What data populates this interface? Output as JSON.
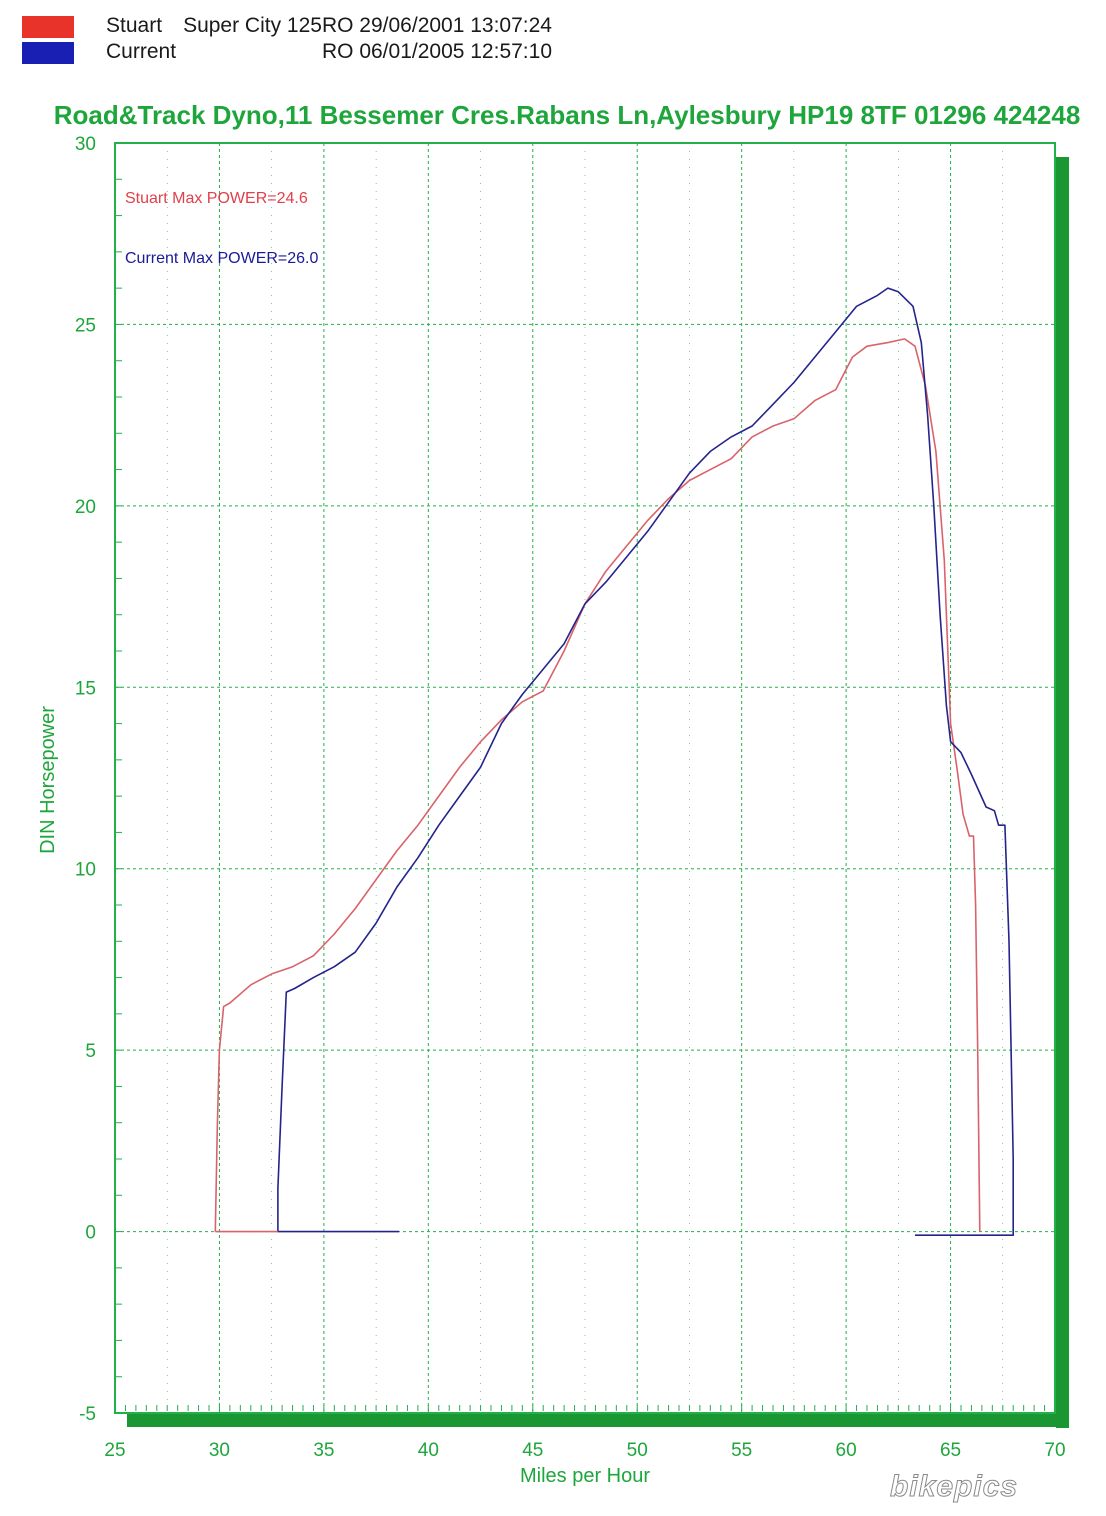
{
  "legend": {
    "entries": [
      {
        "name": "Stuart",
        "detail": "Super City 125RO  29/06/2001 13:07:24",
        "color": "#e8332b"
      },
      {
        "name": "Current",
        "detail": "RO  06/01/2005 12:57:10",
        "color": "#1a1fb4"
      }
    ]
  },
  "colors": {
    "grid": "#22b04a",
    "frame_shadow": "#1a9632",
    "text_green": "#1ea63c",
    "stuart_line": "#d9636a",
    "current_line": "#24248c",
    "stuart_annotation": "#e0404a",
    "current_annotation": "#1a1a9a"
  },
  "watermark": {
    "text": "bikepics"
  },
  "chart_data": {
    "type": "line",
    "title": "Road&Track Dyno,11 Bessemer Cres.Rabans Ln,Aylesbury HP19 8TF 01296 424248",
    "xlabel": "Miles per Hour",
    "ylabel": "DIN Horsepower",
    "xlim": [
      25,
      70
    ],
    "ylim": [
      -5,
      30
    ],
    "x_ticks": [
      25,
      30,
      35,
      40,
      45,
      50,
      55,
      60,
      65,
      70
    ],
    "y_ticks": [
      -5,
      0,
      5,
      10,
      15,
      20,
      25,
      30
    ],
    "grid": true,
    "annotations": [
      {
        "text": "Stuart  Max POWER=24.6",
        "series": "Stuart"
      },
      {
        "text": "Current  Max POWER=26.0",
        "series": "Current"
      }
    ],
    "series": [
      {
        "name": "Stuart",
        "color": "#d9636a",
        "points": [
          [
            29.8,
            0
          ],
          [
            29.9,
            3.0
          ],
          [
            30.0,
            5.0
          ],
          [
            30.2,
            6.2
          ],
          [
            30.5,
            6.3
          ],
          [
            31.5,
            6.8
          ],
          [
            32.5,
            7.1
          ],
          [
            33.5,
            7.3
          ],
          [
            34.5,
            7.6
          ],
          [
            35.5,
            8.2
          ],
          [
            36.5,
            8.9
          ],
          [
            37.5,
            9.7
          ],
          [
            38.5,
            10.5
          ],
          [
            39.5,
            11.2
          ],
          [
            40.5,
            12.0
          ],
          [
            41.5,
            12.8
          ],
          [
            42.5,
            13.5
          ],
          [
            43.5,
            14.1
          ],
          [
            44.5,
            14.6
          ],
          [
            45.5,
            14.9
          ],
          [
            46.5,
            16.0
          ],
          [
            47.5,
            17.3
          ],
          [
            48.5,
            18.2
          ],
          [
            49.5,
            18.9
          ],
          [
            50.5,
            19.6
          ],
          [
            51.5,
            20.2
          ],
          [
            52.5,
            20.7
          ],
          [
            53.5,
            21.0
          ],
          [
            54.5,
            21.3
          ],
          [
            55.5,
            21.9
          ],
          [
            56.5,
            22.2
          ],
          [
            57.5,
            22.4
          ],
          [
            58.5,
            22.9
          ],
          [
            59.5,
            23.2
          ],
          [
            60.3,
            24.1
          ],
          [
            61.0,
            24.4
          ],
          [
            62.0,
            24.5
          ],
          [
            62.8,
            24.6
          ],
          [
            63.3,
            24.4
          ],
          [
            63.8,
            23.3
          ],
          [
            64.3,
            21.5
          ],
          [
            64.7,
            18.5
          ],
          [
            65.0,
            14.0
          ],
          [
            65.3,
            12.8
          ],
          [
            65.6,
            11.5
          ],
          [
            65.9,
            10.9
          ],
          [
            66.1,
            10.9
          ],
          [
            66.2,
            9.0
          ],
          [
            66.3,
            5.0
          ],
          [
            66.4,
            0
          ]
        ]
      },
      {
        "name": "Current",
        "color": "#24248c",
        "points": [
          [
            32.8,
            0
          ],
          [
            32.8,
            1.2
          ],
          [
            33.0,
            4.0
          ],
          [
            33.2,
            6.6
          ],
          [
            33.6,
            6.7
          ],
          [
            34.5,
            7.0
          ],
          [
            35.5,
            7.3
          ],
          [
            36.5,
            7.7
          ],
          [
            37.5,
            8.5
          ],
          [
            38.5,
            9.5
          ],
          [
            39.5,
            10.3
          ],
          [
            40.5,
            11.2
          ],
          [
            41.5,
            12.0
          ],
          [
            42.5,
            12.8
          ],
          [
            43.5,
            14.0
          ],
          [
            44.5,
            14.8
          ],
          [
            45.5,
            15.5
          ],
          [
            46.5,
            16.2
          ],
          [
            47.5,
            17.3
          ],
          [
            48.5,
            17.9
          ],
          [
            49.5,
            18.6
          ],
          [
            50.5,
            19.3
          ],
          [
            51.5,
            20.1
          ],
          [
            52.5,
            20.9
          ],
          [
            53.5,
            21.5
          ],
          [
            54.5,
            21.9
          ],
          [
            55.5,
            22.2
          ],
          [
            56.5,
            22.8
          ],
          [
            57.5,
            23.4
          ],
          [
            58.5,
            24.1
          ],
          [
            59.5,
            24.8
          ],
          [
            60.5,
            25.5
          ],
          [
            61.5,
            25.8
          ],
          [
            62.0,
            26.0
          ],
          [
            62.5,
            25.9
          ],
          [
            63.2,
            25.5
          ],
          [
            63.6,
            24.5
          ],
          [
            63.9,
            22.5
          ],
          [
            64.2,
            20.0
          ],
          [
            64.5,
            17.0
          ],
          [
            64.8,
            14.5
          ],
          [
            65.0,
            13.5
          ],
          [
            65.5,
            13.2
          ],
          [
            66.0,
            12.6
          ],
          [
            66.7,
            11.7
          ],
          [
            67.1,
            11.6
          ],
          [
            67.3,
            11.2
          ],
          [
            67.6,
            11.2
          ],
          [
            67.8,
            8.0
          ],
          [
            68.0,
            2.0
          ],
          [
            68.0,
            -0.1
          ],
          [
            67.0,
            -0.1
          ],
          [
            66.0,
            -0.1
          ],
          [
            65.0,
            -0.1
          ],
          [
            64.0,
            -0.1
          ],
          [
            63.3,
            -0.1
          ]
        ]
      },
      {
        "name": "Stuart",
        "color": "#d9636a",
        "points": [
          [
            29.8,
            0
          ],
          [
            32.8,
            0
          ]
        ]
      },
      {
        "name": "Current",
        "color": "#24248c",
        "points": [
          [
            32.8,
            0
          ],
          [
            38.6,
            0
          ]
        ]
      }
    ]
  }
}
